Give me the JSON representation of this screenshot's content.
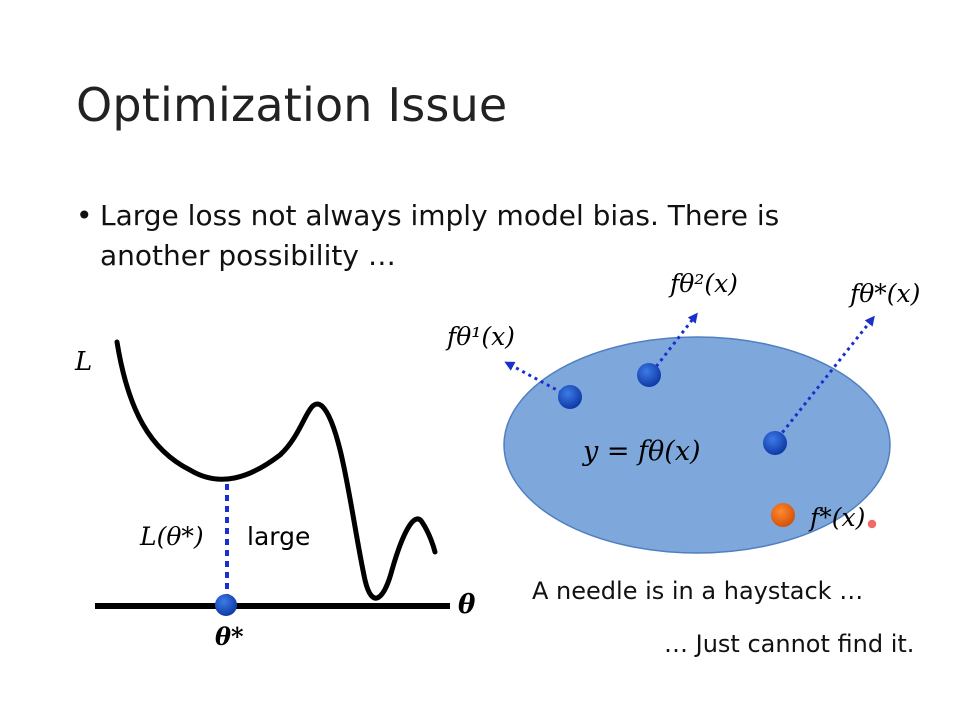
{
  "slide": {
    "title": "Optimization Issue",
    "bullet_symbol": "•",
    "bullet_text": "Large loss not always imply model bias. There is another possibility …"
  },
  "loss_plot": {
    "y_axis_label": "L",
    "x_axis_label": "θ",
    "min_point_label": "θ*",
    "loss_value_label": "L(θ*)",
    "loss_note": "large"
  },
  "function_set": {
    "set_label": "y = fθ(x)",
    "f_theta1_label": "fθ¹(x)",
    "f_theta2_label": "fθ²(x)",
    "f_thetastar_label": "fθ*(x)",
    "f_star_label": "f*(x)",
    "colors": {
      "ellipse": "#7da7da",
      "dot": "#1f4fbf",
      "target": "#e8650a",
      "arrow": "#1a2fd0"
    }
  },
  "captions": {
    "needle": "A needle is in a haystack …",
    "cannot_find": "… Just cannot find it."
  }
}
